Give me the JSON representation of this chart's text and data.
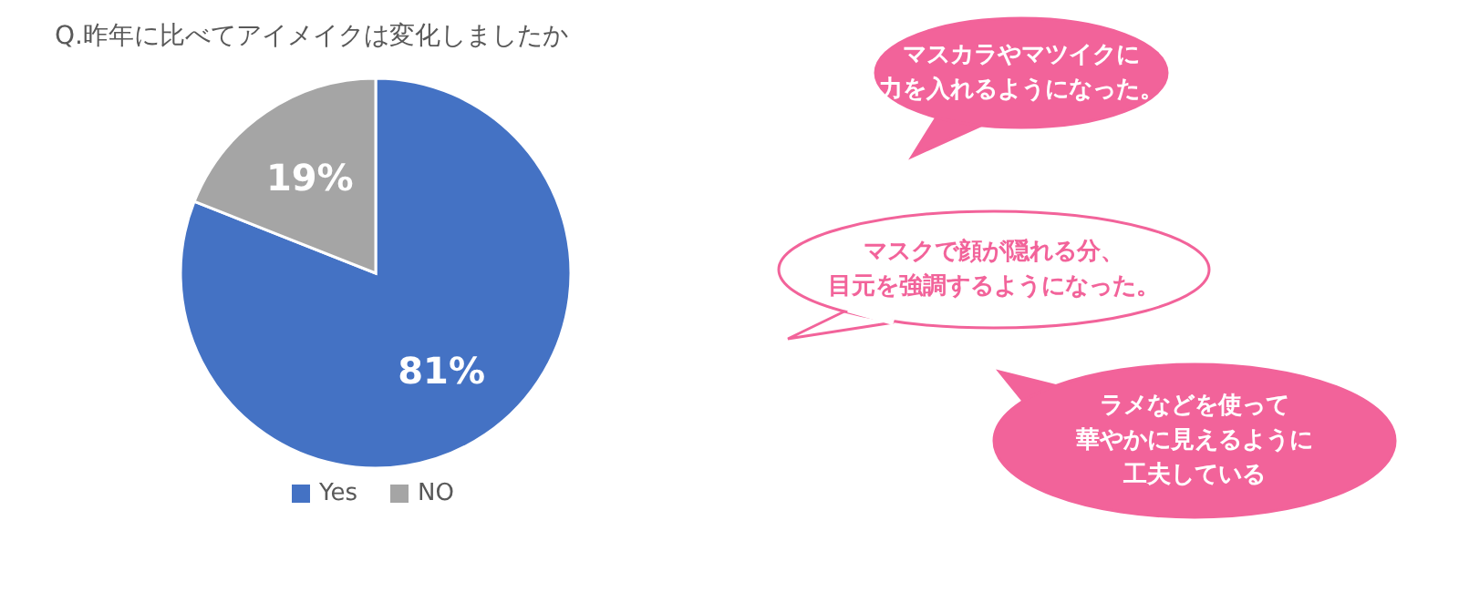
{
  "chart_data": {
    "type": "pie",
    "title": "Q.昨年に比べてアイメイクは変化しましたか",
    "categories": [
      "Yes",
      "NO"
    ],
    "values": [
      81,
      19
    ],
    "colors": [
      "#4472c4",
      "#a5a5a5"
    ],
    "value_labels": [
      "81%",
      "19%"
    ],
    "legend": "bottom",
    "annotations": [
      "マスカラやマツイクに",
      "力を入れるようになった。",
      "マスクで顔が隠れる分、",
      "目元を強調するようになった。",
      "ラメなどを使って",
      "華やかに見えるように",
      "工夫している"
    ]
  }
}
